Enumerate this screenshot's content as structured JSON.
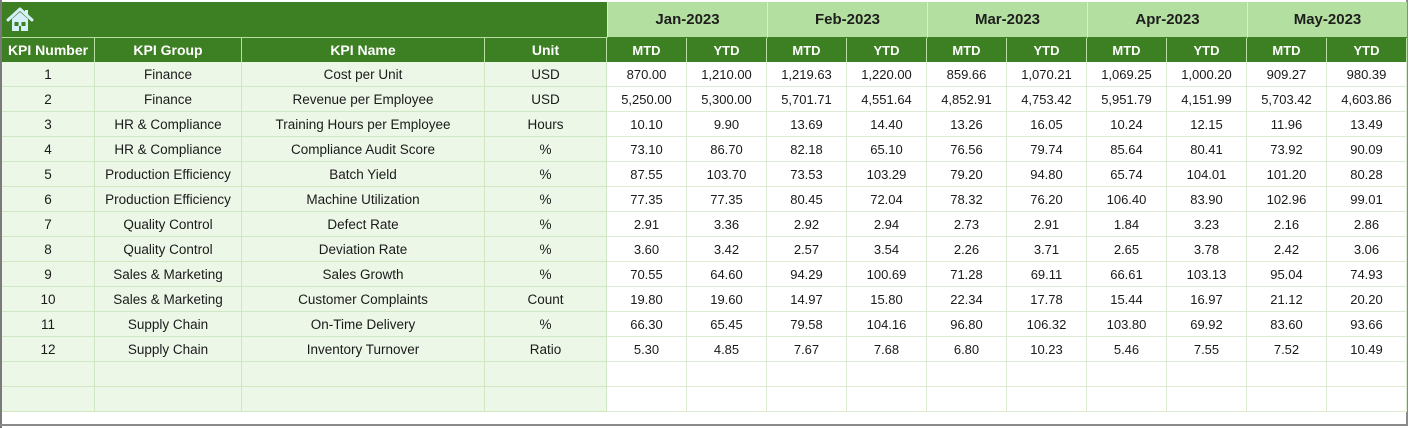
{
  "header": {
    "home_icon": "home-icon",
    "columns": [
      "KPI Number",
      "KPI Group",
      "KPI Name",
      "Unit"
    ],
    "months": [
      "Jan-2023",
      "Feb-2023",
      "Mar-2023",
      "Apr-2023",
      "May-2023"
    ],
    "sub_columns": [
      "MTD",
      "YTD"
    ]
  },
  "colors": {
    "header_dark_green": "#3d7f23",
    "month_light_green": "#b3e0a0",
    "left_cells_bg": "#edf7e8"
  },
  "rows": [
    {
      "num": "1",
      "group": "Finance",
      "name": "Cost per Unit",
      "unit": "USD",
      "values": [
        "870.00",
        "1,210.00",
        "1,219.63",
        "1,220.00",
        "859.66",
        "1,070.21",
        "1,069.25",
        "1,000.20",
        "909.27",
        "980.39"
      ]
    },
    {
      "num": "2",
      "group": "Finance",
      "name": "Revenue per Employee",
      "unit": "USD",
      "values": [
        "5,250.00",
        "5,300.00",
        "5,701.71",
        "4,551.64",
        "4,852.91",
        "4,753.42",
        "5,951.79",
        "4,151.99",
        "5,703.42",
        "4,603.86"
      ]
    },
    {
      "num": "3",
      "group": "HR & Compliance",
      "name": "Training Hours per Employee",
      "unit": "Hours",
      "values": [
        "10.10",
        "9.90",
        "13.69",
        "14.40",
        "13.26",
        "16.05",
        "10.24",
        "12.15",
        "11.96",
        "13.49"
      ]
    },
    {
      "num": "4",
      "group": "HR & Compliance",
      "name": "Compliance Audit Score",
      "unit": "%",
      "values": [
        "73.10",
        "86.70",
        "82.18",
        "65.10",
        "76.56",
        "79.74",
        "85.64",
        "80.41",
        "73.92",
        "90.09"
      ]
    },
    {
      "num": "5",
      "group": "Production Efficiency",
      "name": "Batch Yield",
      "unit": "%",
      "values": [
        "87.55",
        "103.70",
        "73.53",
        "103.29",
        "79.20",
        "94.80",
        "65.74",
        "104.01",
        "101.20",
        "80.28"
      ]
    },
    {
      "num": "6",
      "group": "Production Efficiency",
      "name": "Machine Utilization",
      "unit": "%",
      "values": [
        "77.35",
        "77.35",
        "80.45",
        "72.04",
        "78.32",
        "76.20",
        "106.40",
        "83.90",
        "102.96",
        "99.01"
      ]
    },
    {
      "num": "7",
      "group": "Quality Control",
      "name": "Defect Rate",
      "unit": "%",
      "values": [
        "2.91",
        "3.36",
        "2.92",
        "2.94",
        "2.73",
        "2.91",
        "1.84",
        "3.23",
        "2.16",
        "2.86"
      ]
    },
    {
      "num": "8",
      "group": "Quality Control",
      "name": "Deviation Rate",
      "unit": "%",
      "values": [
        "3.60",
        "3.42",
        "2.57",
        "3.54",
        "2.26",
        "3.71",
        "2.65",
        "3.78",
        "2.42",
        "3.06"
      ]
    },
    {
      "num": "9",
      "group": "Sales & Marketing",
      "name": "Sales Growth",
      "unit": "%",
      "values": [
        "70.55",
        "64.60",
        "94.29",
        "100.69",
        "71.28",
        "69.11",
        "66.61",
        "103.13",
        "95.04",
        "74.93"
      ]
    },
    {
      "num": "10",
      "group": "Sales & Marketing",
      "name": "Customer Complaints",
      "unit": "Count",
      "values": [
        "19.80",
        "19.60",
        "14.97",
        "15.80",
        "22.34",
        "17.78",
        "15.44",
        "16.97",
        "21.12",
        "20.20"
      ]
    },
    {
      "num": "11",
      "group": "Supply Chain",
      "name": "On-Time Delivery",
      "unit": "%",
      "values": [
        "66.30",
        "65.45",
        "79.58",
        "104.16",
        "96.80",
        "106.32",
        "103.80",
        "69.92",
        "83.60",
        "93.66"
      ]
    },
    {
      "num": "12",
      "group": "Supply Chain",
      "name": "Inventory Turnover",
      "unit": "Ratio",
      "values": [
        "5.30",
        "4.85",
        "7.67",
        "7.68",
        "6.80",
        "10.23",
        "5.46",
        "7.55",
        "7.52",
        "10.49"
      ]
    }
  ],
  "empty_rows": 2
}
